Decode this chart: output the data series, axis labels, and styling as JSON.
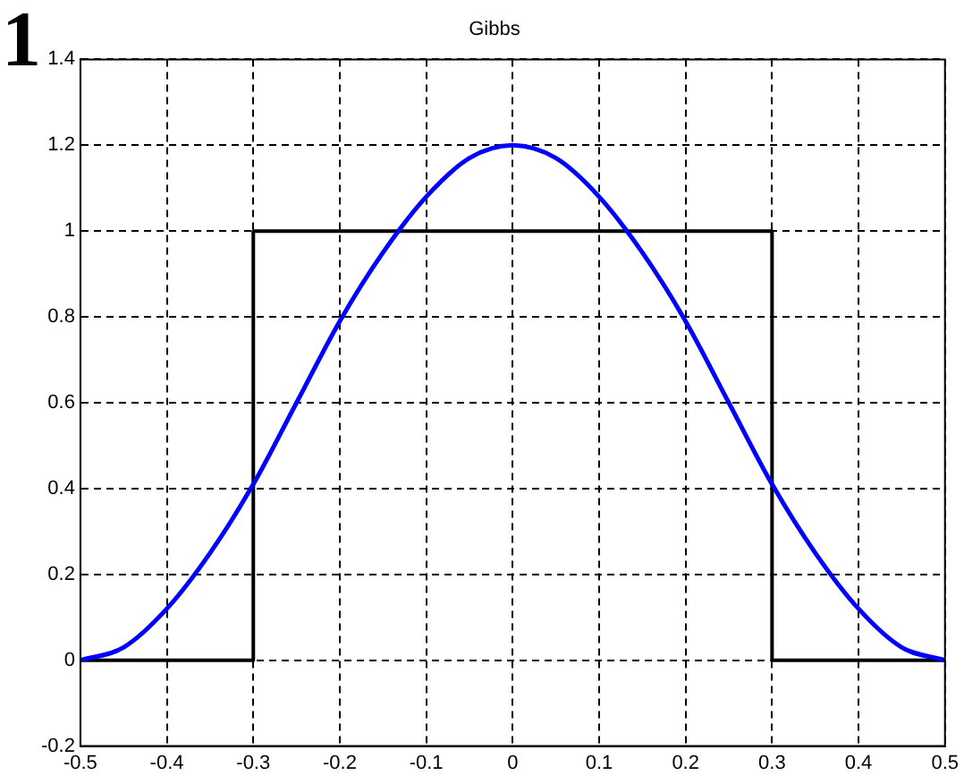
{
  "chart_data": {
    "type": "line",
    "title": "Gibbs",
    "annotations": [
      "1"
    ],
    "series": [
      {
        "color": "#0000ff",
        "x": [
          -0.5,
          -0.45,
          -0.4,
          -0.35,
          -0.3,
          -0.25,
          -0.2,
          -0.15,
          -0.1,
          -0.05,
          0,
          0.05,
          0.1,
          0.15,
          0.2,
          0.25,
          0.3,
          0.35,
          0.4,
          0.45,
          0.5
        ],
        "values": [
          0,
          0.03,
          0.12,
          0.25,
          0.41,
          0.6,
          0.79,
          0.95,
          1.08,
          1.17,
          1.2,
          1.17,
          1.08,
          0.95,
          0.79,
          0.6,
          0.41,
          0.25,
          0.12,
          0.03,
          0
        ]
      },
      {
        "color": "#000000",
        "x": [
          -0.5,
          -0.3,
          -0.3,
          0.3,
          0.3,
          0.5
        ],
        "values": [
          0,
          0,
          1,
          1,
          0,
          0
        ]
      }
    ],
    "xlim": [
      -0.5,
      0.5
    ],
    "xticks": [
      -0.5,
      -0.4,
      -0.3,
      -0.2,
      -0.1,
      0,
      0.1,
      0.2,
      0.3,
      0.4,
      0.5
    ],
    "ylim": [
      -0.2,
      1.4
    ],
    "yticks": [
      -0.2,
      0,
      0.2,
      0.4,
      0.6,
      0.8,
      1,
      1.2,
      1.4
    ],
    "grid": true,
    "legend": false,
    "marker": "none",
    "line_style": "solid"
  }
}
